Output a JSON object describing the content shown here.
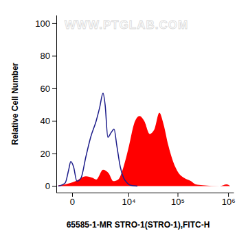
{
  "chart_data": {
    "type": "line",
    "x_label": "65585-1-MR STRO-1(STRO-1),FITC-H",
    "y_label": "Relative Cell Number",
    "annotations": [
      "WWW.PTGLAB.COM"
    ],
    "xlim": [
      -880,
      1280000
    ],
    "ylim": [
      -4,
      105
    ],
    "xticks": [
      0,
      {
        "value": 10000,
        "label": "10⁴"
      },
      {
        "value": 100000,
        "label": "10⁵"
      },
      {
        "value": 1000000,
        "label": "10⁶"
      }
    ],
    "yticks": [
      0,
      20,
      40,
      60,
      80,
      100
    ],
    "series": [
      {
        "type": "area",
        "color": "#ff0000",
        "x": [
          -728,
          -307,
          142,
          728,
          1302,
          1664,
          2579,
          3547,
          4620,
          5950,
          7870,
          10340,
          13070,
          17020,
          21340,
          27640,
          34610,
          43260,
          52420,
          65350,
          81480,
          104800,
          134700,
          184400,
          229300,
          314200,
          686300,
          937400,
          1096000
        ],
        "values": [
          0.5,
          1,
          3,
          6,
          5,
          4,
          10,
          8,
          3,
          4,
          12,
          25,
          38,
          43,
          40,
          32,
          35,
          45,
          38,
          25,
          15,
          8,
          5,
          3,
          1,
          0.5,
          0,
          1,
          0
        ]
      },
      {
        "type": "line",
        "color": "#1c1c8a",
        "x": [
          -728,
          -307,
          -142,
          -54,
          54,
          205,
          420,
          728,
          1109,
          1664,
          2083,
          2579,
          2915,
          3413,
          4133,
          4793,
          5538,
          6612,
          7870,
          9341,
          11060,
          15420
        ],
        "values": [
          0,
          2,
          10,
          15,
          12,
          3,
          5,
          18,
          30,
          40,
          48,
          57,
          50,
          30,
          33,
          35,
          25,
          12,
          5,
          2,
          0.5,
          0
        ]
      }
    ]
  }
}
